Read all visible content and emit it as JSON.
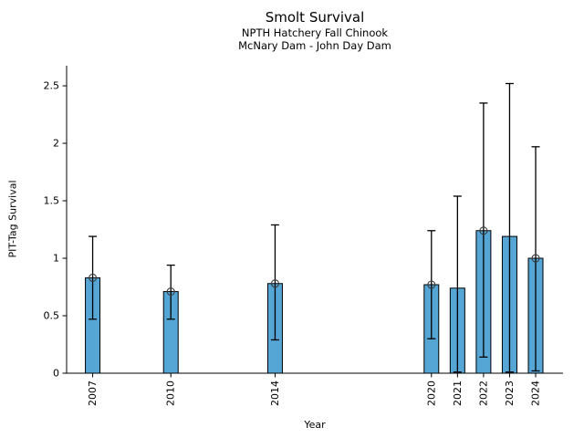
{
  "window": {
    "title": "Smolt Survival figure"
  },
  "header": {
    "title": "Smolt Survival",
    "subtitle1": "NPTH Hatchery Fall Chinook",
    "subtitle2": "McNary Dam - John Day Dam"
  },
  "chart_data": {
    "type": "bar",
    "title": "Smolt Survival",
    "subtitle": [
      "NPTH Hatchery Fall Chinook",
      "McNary Dam - John Day Dam"
    ],
    "xlabel": "Year",
    "ylabel": "PIT-Tag Survival",
    "categories": [
      "2007",
      "2010",
      "2014",
      "2020",
      "2021",
      "2022",
      "2023",
      "2024"
    ],
    "values": [
      0.83,
      0.71,
      0.78,
      0.77,
      0.74,
      1.24,
      1.19,
      1.0
    ],
    "error_low": [
      0.47,
      0.47,
      0.29,
      0.3,
      0.01,
      0.14,
      0.01,
      0.02
    ],
    "error_high": [
      1.19,
      0.94,
      1.29,
      1.24,
      1.54,
      2.35,
      2.52,
      1.97
    ],
    "point_markers": [
      true,
      true,
      true,
      true,
      false,
      true,
      false,
      true
    ],
    "yticks": [
      0,
      0.5,
      1,
      1.5,
      2,
      2.5
    ],
    "ylim": [
      0,
      2.675
    ],
    "xlim": [
      2006,
      2025.05
    ],
    "x_tick_rotation": 90,
    "grid": false,
    "legend": "none",
    "bar_width_years": 0.56,
    "bar_color": "#55A5D5",
    "edge_color": "#000000",
    "errorbar_color": "#000000",
    "marker_color": "#3a3a3a",
    "axis_color": "#000000",
    "tick_font_size": 11
  }
}
